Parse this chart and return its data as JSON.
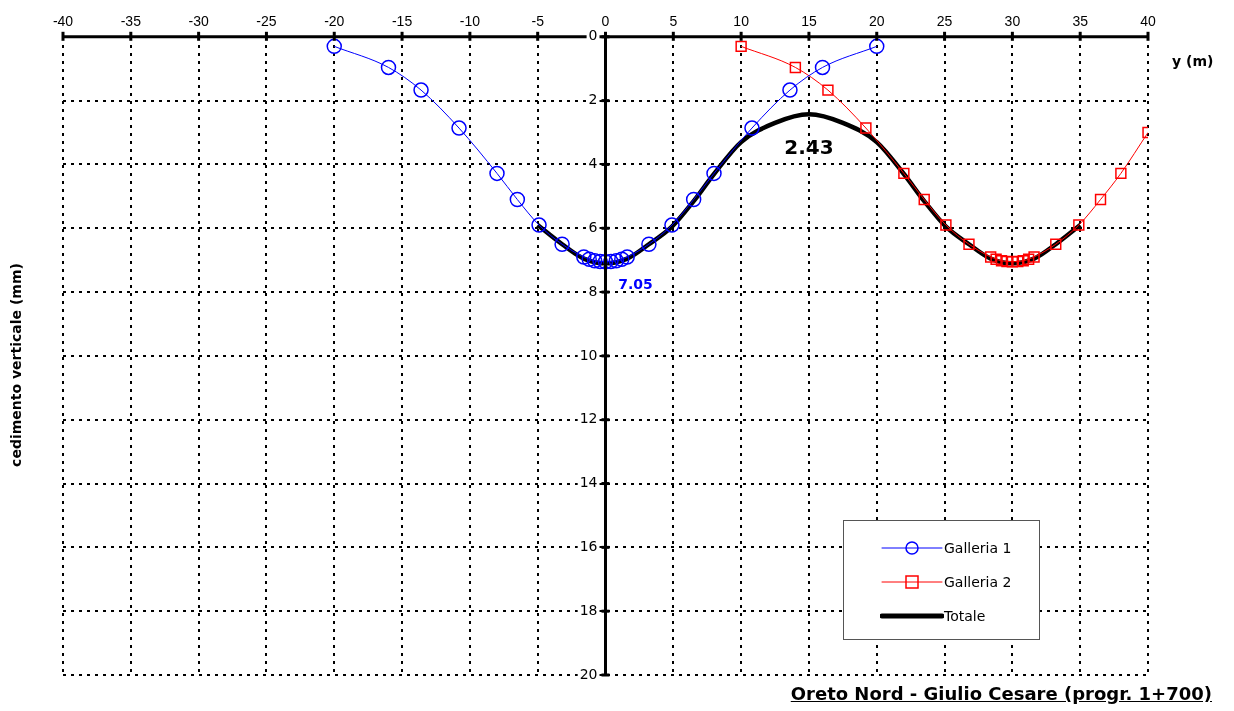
{
  "chart_data": {
    "type": "line",
    "title": "Oreto Nord - Giulio Cesare (progr. 1+700)",
    "xlabel": "y (m)",
    "ylabel": "cedimento verticale (mm)",
    "xlim": [
      -40,
      40
    ],
    "xticks": [
      -40,
      -35,
      -30,
      -25,
      -20,
      -15,
      -10,
      -5,
      0,
      5,
      10,
      15,
      20,
      25,
      30,
      35,
      40
    ],
    "ylim": [
      20,
      0
    ],
    "yticks": [
      0,
      2,
      4,
      6,
      8,
      10,
      12,
      14,
      16,
      18,
      20
    ],
    "grid": true,
    "legend": "bottom right",
    "series": [
      {
        "name": "Galleria 1",
        "color": "#0000ff",
        "marker": "circle",
        "x": [
          -20,
          -16,
          -13.6,
          -10.8,
          -8,
          -6.5,
          -4.9,
          -3.2,
          -1.6,
          -1.2,
          -0.8,
          -0.4,
          0,
          0.4,
          0.8,
          1.2,
          1.6,
          3.2,
          4.9,
          6.5,
          8,
          10.8,
          13.6,
          16,
          20
        ],
        "values": [
          0.3,
          0.96,
          1.67,
          2.86,
          4.28,
          5.1,
          5.9,
          6.5,
          6.9,
          6.97,
          7.02,
          7.04,
          7.05,
          7.04,
          7.02,
          6.97,
          6.9,
          6.5,
          5.9,
          5.1,
          4.28,
          2.86,
          1.67,
          0.96,
          0.3
        ]
      },
      {
        "name": "Galleria 2",
        "color": "#ff0000",
        "marker": "square",
        "x": [
          10,
          14,
          16.4,
          19.2,
          22,
          23.5,
          25.1,
          26.8,
          28.4,
          28.8,
          29.2,
          29.6,
          30,
          30.4,
          30.8,
          31.2,
          31.6,
          33.2,
          34.9,
          36.5,
          38,
          40
        ],
        "values": [
          0.3,
          0.96,
          1.67,
          2.86,
          4.28,
          5.1,
          5.9,
          6.5,
          6.9,
          6.97,
          7.02,
          7.04,
          7.05,
          7.04,
          7.02,
          6.97,
          6.9,
          6.5,
          5.9,
          5.1,
          4.28,
          3.0
        ]
      },
      {
        "name": "Totale",
        "color": "#000000",
        "marker": "none",
        "x": [
          -5,
          -3.2,
          -1.6,
          0,
          1.6,
          3.2,
          4.9,
          6.5,
          8,
          10,
          12.5,
          15,
          17.5,
          20,
          22,
          23.5,
          25.1,
          26.8,
          28.4,
          30,
          31.6,
          33.2,
          35
        ],
        "values": [
          5.9,
          6.5,
          6.95,
          7.1,
          6.95,
          6.5,
          5.95,
          5.15,
          4.3,
          3.3,
          2.7,
          2.43,
          2.7,
          3.3,
          4.3,
          5.15,
          5.95,
          6.5,
          6.95,
          7.1,
          6.95,
          6.5,
          5.9
        ]
      }
    ],
    "annotations": [
      {
        "text": "7.05",
        "x": 0,
        "y": 7.05
      },
      {
        "text": "2.43",
        "x": 15,
        "y": 2.43
      }
    ]
  }
}
